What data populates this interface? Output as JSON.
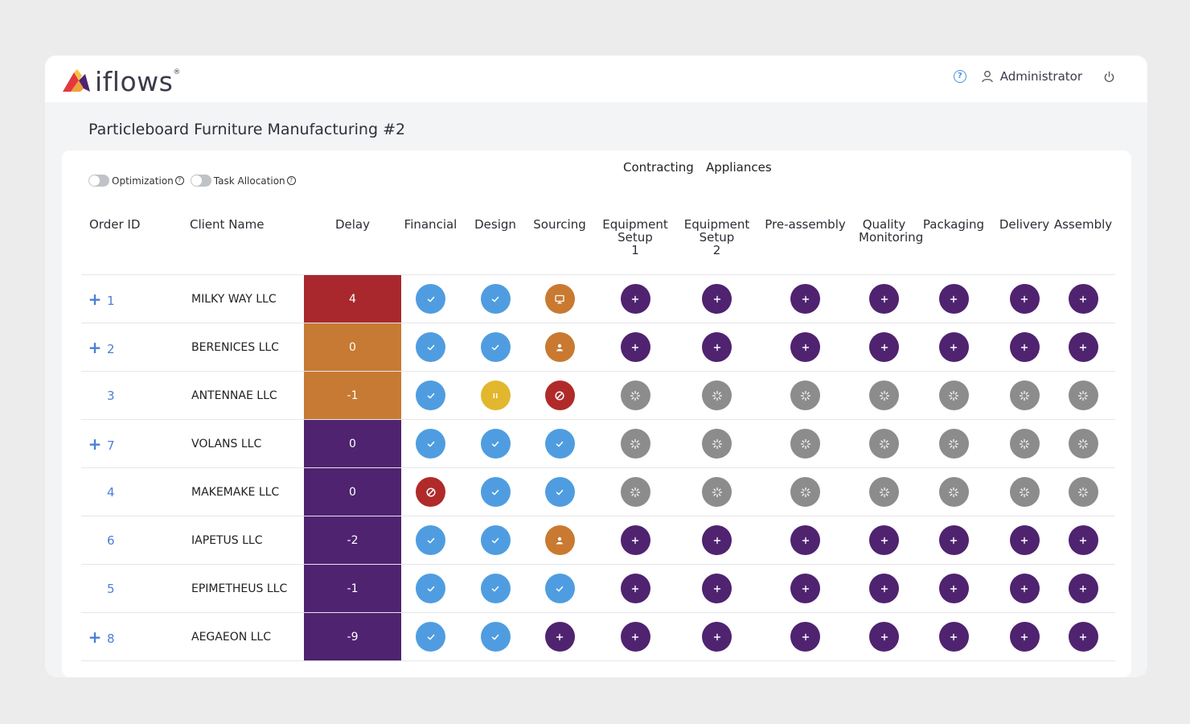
{
  "app": {
    "logo_text": "iflows",
    "logo_mark": "®"
  },
  "header": {
    "user_name": "Administrator",
    "help_icon": "help-circle-icon",
    "user_icon": "user-icon",
    "power_icon": "power-icon"
  },
  "page": {
    "title": "Particleboard Furniture Manufacturing #2"
  },
  "groups": {
    "contracting": "Contracting",
    "appliances": "Appliances"
  },
  "toggles": [
    {
      "label": "Optimization",
      "on": false
    },
    {
      "label": "Task Allocation",
      "on": false
    }
  ],
  "columns": {
    "order_id": "Order ID",
    "client_name": "Client Name",
    "delay": "Delay",
    "financial": "Financial",
    "design": "Design",
    "sourcing": "Sourcing",
    "equipment_setup_1_a": "Equipment",
    "equipment_setup_1_b": "Setup",
    "equipment_setup_1_c": "1",
    "equipment_setup_2_a": "Equipment",
    "equipment_setup_2_b": "Setup",
    "equipment_setup_2_c": "2",
    "pre_assembly": "Pre-assembly",
    "quality_monitoring_a": "Quality",
    "quality_monitoring_b": "Monitoring",
    "packaging": "Packaging",
    "delivery": "Delivery",
    "assembly": "Assembly"
  },
  "status_colors": {
    "done": "#4f9de0",
    "todo": "#4f2370",
    "waiting": "#8c8c8c",
    "blocked": "#b02a2a",
    "paused": "#e2b72e",
    "assigned": "#c97a30"
  },
  "rows": [
    {
      "expand": "+",
      "order_id": "1",
      "client": "MILKY WAY LLC",
      "delay": "4",
      "delay_color": "#a8282e",
      "tasks": [
        "done",
        "done",
        "in-use",
        "todo",
        "todo",
        "todo",
        "todo",
        "todo",
        "todo",
        "todo"
      ]
    },
    {
      "expand": "+",
      "order_id": "2",
      "client": "BERENICES LLC",
      "delay": "0",
      "delay_color": "#c77a33",
      "tasks": [
        "done",
        "done",
        "assigned",
        "todo",
        "todo",
        "todo",
        "todo",
        "todo",
        "todo",
        "todo"
      ]
    },
    {
      "expand": "",
      "order_id": "3",
      "client": "ANTENNAE LLC",
      "delay": "-1",
      "delay_color": "#c77a33",
      "tasks": [
        "done",
        "paused",
        "blocked",
        "waiting",
        "waiting",
        "waiting",
        "waiting",
        "waiting",
        "waiting",
        "waiting"
      ]
    },
    {
      "expand": "+",
      "order_id": "7",
      "client": "VOLANS LLC",
      "delay": "0",
      "delay_color": "#4f2370",
      "tasks": [
        "done",
        "done",
        "done",
        "waiting",
        "waiting",
        "waiting",
        "waiting",
        "waiting",
        "waiting",
        "waiting"
      ]
    },
    {
      "expand": "",
      "order_id": "4",
      "client": "MAKEMAKE LLC",
      "delay": "0",
      "delay_color": "#4f2370",
      "tasks": [
        "blocked",
        "done",
        "done",
        "waiting",
        "waiting",
        "waiting",
        "waiting",
        "waiting",
        "waiting",
        "waiting"
      ]
    },
    {
      "expand": "",
      "order_id": "6",
      "client": "IAPETUS LLC",
      "delay": "-2",
      "delay_color": "#4f2370",
      "tasks": [
        "done",
        "done",
        "assigned",
        "todo",
        "todo",
        "todo",
        "todo",
        "todo",
        "todo",
        "todo"
      ]
    },
    {
      "expand": "",
      "order_id": "5",
      "client": "EPIMETHEUS LLC",
      "delay": "-1",
      "delay_color": "#4f2370",
      "tasks": [
        "done",
        "done",
        "done",
        "todo",
        "todo",
        "todo",
        "todo",
        "todo",
        "todo",
        "todo"
      ]
    },
    {
      "expand": "+",
      "order_id": "8",
      "client": "AEGAEON LLC",
      "delay": "-9",
      "delay_color": "#4f2370",
      "tasks": [
        "done",
        "done",
        "todo",
        "todo",
        "todo",
        "todo",
        "todo",
        "todo",
        "todo",
        "todo"
      ]
    }
  ]
}
